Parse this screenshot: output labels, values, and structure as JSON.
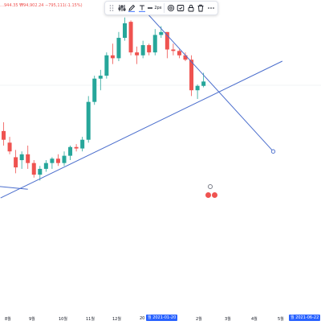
{
  "ohlc_text": "…944.35 ₩94,902.24 −795,111(-1.15%)",
  "toolbar": {
    "icons": [
      "grid-dots-icon",
      "settings-sliders-icon",
      "pencil-icon",
      "text-line-icon",
      "lock-icon",
      "visibility-icon",
      "alert-icon",
      "trash-icon",
      "more-icon"
    ],
    "line_width_label": "2px"
  },
  "x_axis": {
    "labels": [
      "8월",
      "9월",
      "10월",
      "11월",
      "12월",
      "20",
      "2월",
      "3월",
      "4월",
      "5월"
    ],
    "highlight_start": "월 2021-01-20",
    "highlight_end": "월 2021-06-22"
  },
  "colors": {
    "up": "#26a69a",
    "down": "#ef5350",
    "trendline": "#4b6ecd",
    "highlight": "#2962ff"
  },
  "chart_data": {
    "type": "candlestick",
    "title": "",
    "series": [
      {
        "values": [
          {
            "o": 0.6,
            "h": 0.63,
            "l": 0.55,
            "c": 0.57
          },
          {
            "o": 0.56,
            "h": 0.58,
            "l": 0.52,
            "c": 0.53
          },
          {
            "o": 0.51,
            "h": 0.535,
            "l": 0.455,
            "c": 0.475
          },
          {
            "o": 0.5,
            "h": 0.53,
            "l": 0.47,
            "c": 0.52
          },
          {
            "o": 0.52,
            "h": 0.55,
            "l": 0.47,
            "c": 0.49
          },
          {
            "o": 0.49,
            "h": 0.5,
            "l": 0.44,
            "c": 0.45
          },
          {
            "o": 0.45,
            "h": 0.48,
            "l": 0.43,
            "c": 0.47
          },
          {
            "o": 0.47,
            "h": 0.5,
            "l": 0.46,
            "c": 0.49
          },
          {
            "o": 0.49,
            "h": 0.51,
            "l": 0.47,
            "c": 0.505
          },
          {
            "o": 0.505,
            "h": 0.52,
            "l": 0.48,
            "c": 0.49
          },
          {
            "o": 0.49,
            "h": 0.53,
            "l": 0.48,
            "c": 0.515
          },
          {
            "o": 0.515,
            "h": 0.55,
            "l": 0.5,
            "c": 0.545
          },
          {
            "o": 0.545,
            "h": 0.555,
            "l": 0.53,
            "c": 0.54
          },
          {
            "o": 0.54,
            "h": 0.58,
            "l": 0.53,
            "c": 0.57
          },
          {
            "o": 0.57,
            "h": 0.72,
            "l": 0.56,
            "c": 0.7
          },
          {
            "o": 0.7,
            "h": 0.79,
            "l": 0.69,
            "c": 0.78
          },
          {
            "o": 0.78,
            "h": 0.81,
            "l": 0.74,
            "c": 0.79
          },
          {
            "o": 0.79,
            "h": 0.87,
            "l": 0.78,
            "c": 0.86
          },
          {
            "o": 0.86,
            "h": 0.9,
            "l": 0.83,
            "c": 0.85
          },
          {
            "o": 0.85,
            "h": 0.94,
            "l": 0.84,
            "c": 0.92
          },
          {
            "o": 0.92,
            "h": 0.99,
            "l": 0.91,
            "c": 0.97
          },
          {
            "o": 0.975,
            "h": 0.98,
            "l": 0.86,
            "c": 0.87
          },
          {
            "o": 0.87,
            "h": 0.89,
            "l": 0.83,
            "c": 0.86
          },
          {
            "o": 0.86,
            "h": 0.91,
            "l": 0.85,
            "c": 0.895
          },
          {
            "o": 0.895,
            "h": 0.9,
            "l": 0.86,
            "c": 0.87
          },
          {
            "o": 0.87,
            "h": 0.95,
            "l": 0.86,
            "c": 0.93
          },
          {
            "o": 0.93,
            "h": 0.96,
            "l": 0.92,
            "c": 0.94
          },
          {
            "o": 0.94,
            "h": 0.94,
            "l": 0.85,
            "c": 0.88
          },
          {
            "o": 0.88,
            "h": 0.9,
            "l": 0.86,
            "c": 0.875
          },
          {
            "o": 0.875,
            "h": 0.88,
            "l": 0.85,
            "c": 0.86
          },
          {
            "o": 0.86,
            "h": 0.87,
            "l": 0.84,
            "c": 0.845
          },
          {
            "o": 0.845,
            "h": 0.86,
            "l": 0.72,
            "c": 0.74
          },
          {
            "o": 0.74,
            "h": 0.76,
            "l": 0.71,
            "c": 0.755
          },
          {
            "o": 0.755,
            "h": 0.8,
            "l": 0.75,
            "c": 0.77
          }
        ]
      }
    ],
    "trendlines": [
      {
        "from": [
          -0.5,
          0.37
        ],
        "to": [
          46,
          0.84
        ]
      },
      {
        "from": [
          23,
          1.02
        ],
        "to": [
          44.5,
          0.53
        ]
      },
      {
        "from": [
          -1,
          0.41
        ],
        "to": [
          4,
          0.4
        ]
      }
    ]
  }
}
